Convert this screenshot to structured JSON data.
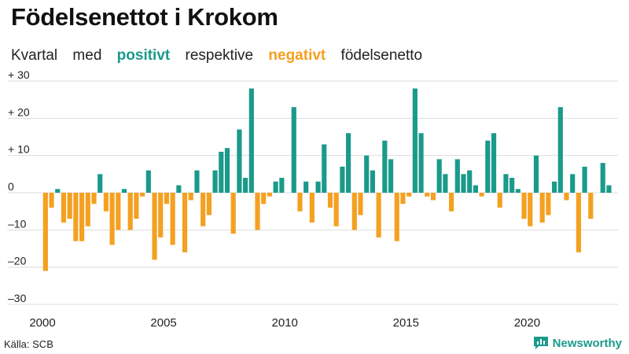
{
  "header": {
    "title": "Födelsenettot i Krokom",
    "subtitle_parts": [
      "Kvartal",
      "med",
      "positivt",
      "respektive",
      "negativt",
      "födelsenetto"
    ]
  },
  "footer": {
    "source": "Källa: SCB",
    "brand": "Newsworthy"
  },
  "colors": {
    "positive": "#1a9a8a",
    "negative": "#f4a020",
    "grid": "#dddddd"
  },
  "chart_data": {
    "type": "bar",
    "title": "Födelsenettot i Krokom",
    "subtitle": "Kvartal med positivt respektive negativt födelsenetto",
    "xlabel": "",
    "ylabel": "",
    "ylim": [
      -30,
      30
    ],
    "xlim": [
      2000,
      2023.75
    ],
    "y_ticks": [
      30,
      20,
      10,
      0,
      -10,
      -20,
      -30
    ],
    "y_tick_labels": [
      "+ 30",
      "+ 20",
      "+ 10",
      "0",
      "–10",
      "–20",
      "–30"
    ],
    "x_ticks": [
      2000,
      2005,
      2010,
      2015,
      2020
    ],
    "x_tick_labels": [
      "2000",
      "2005",
      "2010",
      "2015",
      "2020"
    ],
    "grid": true,
    "period": "quarter",
    "start": "2000 Q1",
    "values": [
      -21,
      -4,
      1,
      -8,
      -7,
      -13,
      -13,
      -9,
      -3,
      5,
      -5,
      -14,
      -10,
      1,
      -10,
      -7,
      -1,
      6,
      -18,
      -12,
      -3,
      -14,
      2,
      -16,
      -2,
      6,
      -9,
      -6,
      6,
      11,
      12,
      -11,
      17,
      4,
      28,
      -10,
      -3,
      -1,
      3,
      4,
      0,
      23,
      -5,
      3,
      -8,
      3,
      13,
      -4,
      -9,
      7,
      16,
      -10,
      -6,
      10,
      6,
      -12,
      14,
      9,
      -13,
      -3,
      -1,
      28,
      16,
      -1,
      -2,
      9,
      5,
      -5,
      9,
      5,
      6,
      2,
      -1,
      14,
      16,
      -4,
      5,
      4,
      1,
      -7,
      -9,
      10,
      -8,
      -6,
      3,
      23,
      -2,
      5,
      -16,
      7,
      -7,
      0,
      8,
      2
    ]
  }
}
